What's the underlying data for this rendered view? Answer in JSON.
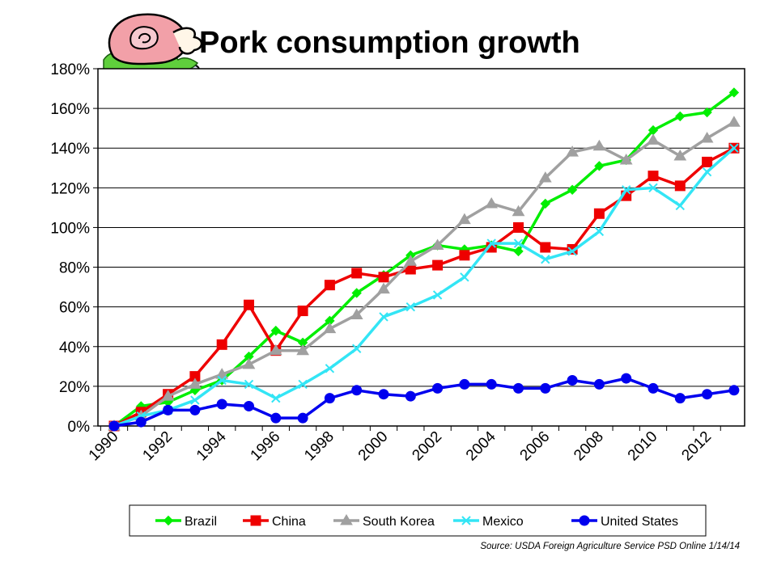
{
  "title": "Pork consumption growth",
  "source": "Source: USDA Foreign Agriculture Service PSD Online 1/14/14",
  "icon": "ham-on-plate-icon",
  "chart_data": {
    "type": "line",
    "title": "Pork consumption growth",
    "xlabel": "",
    "ylabel": "",
    "x": [
      1990,
      1991,
      1992,
      1993,
      1994,
      1995,
      1996,
      1997,
      1998,
      1999,
      2000,
      2001,
      2002,
      2003,
      2004,
      2005,
      2006,
      2007,
      2008,
      2009,
      2010,
      2011,
      2012,
      2013
    ],
    "x_tick_labels": [
      "1990",
      "1992",
      "1994",
      "1996",
      "1998",
      "2000",
      "2002",
      "2004",
      "2006",
      "2008",
      "2010",
      "2012"
    ],
    "y_tick_labels": [
      "0%",
      "20%",
      "40%",
      "60%",
      "80%",
      "100%",
      "120%",
      "140%",
      "160%",
      "180%"
    ],
    "ylim": [
      0,
      180
    ],
    "grid": "horizontal",
    "legend_position": "bottom",
    "series": [
      {
        "name": "Brazil",
        "color": "#00ee00",
        "marker": "diamond",
        "values": [
          0,
          10,
          12,
          18,
          23,
          35,
          48,
          42,
          53,
          67,
          76,
          86,
          91,
          89,
          91,
          88,
          112,
          119,
          131,
          134,
          149,
          156,
          158,
          168
        ]
      },
      {
        "name": "China",
        "color": "#ee0000",
        "marker": "square",
        "values": [
          0,
          7,
          16,
          25,
          41,
          61,
          38,
          58,
          71,
          77,
          75,
          79,
          81,
          86,
          90,
          100,
          90,
          89,
          107,
          116,
          126,
          121,
          133,
          140
        ]
      },
      {
        "name": "South Korea",
        "color": "#a0a0a0",
        "marker": "triangle",
        "values": [
          0,
          5,
          15,
          21,
          26,
          31,
          38,
          38,
          49,
          56,
          69,
          83,
          91,
          104,
          112,
          108,
          125,
          138,
          141,
          134,
          144,
          136,
          145,
          153
        ]
      },
      {
        "name": "Mexico",
        "color": "#33e5f5",
        "marker": "x",
        "values": [
          0,
          5,
          8,
          13,
          23,
          21,
          14,
          21,
          29,
          39,
          55,
          60,
          66,
          75,
          92,
          92,
          84,
          88,
          98,
          119,
          120,
          111,
          128,
          140
        ]
      },
      {
        "name": "United States",
        "color": "#0000ee",
        "marker": "circle",
        "values": [
          0,
          2,
          8,
          8,
          11,
          10,
          4,
          4,
          14,
          18,
          16,
          15,
          19,
          21,
          21,
          19,
          19,
          23,
          21,
          24,
          19,
          14,
          16,
          18
        ]
      }
    ]
  }
}
